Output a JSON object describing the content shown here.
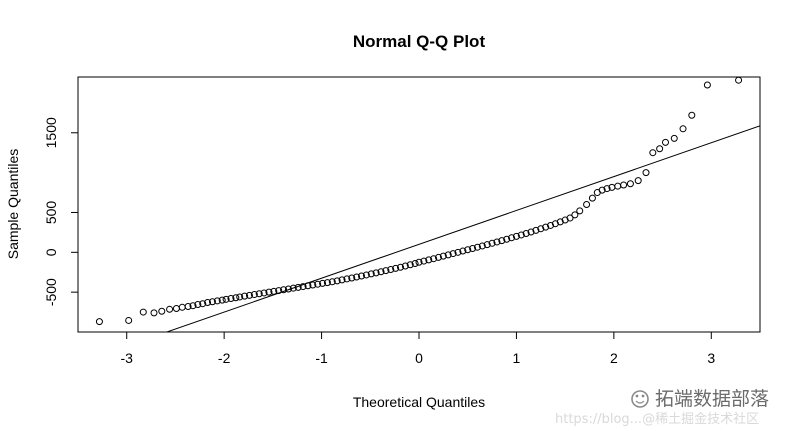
{
  "chart_data": {
    "type": "scatter",
    "subtype": "normal-qq",
    "title": "Normal Q-Q Plot",
    "xlabel": "Theoretical Quantiles",
    "ylabel": "Sample Quantiles",
    "xlim": [
      -3.5,
      3.5
    ],
    "ylim": [
      -1000,
      2200
    ],
    "x_ticks": [
      -3,
      -2,
      -1,
      0,
      1,
      2,
      3
    ],
    "y_ticks": [
      -500,
      0,
      500,
      1500
    ],
    "reference_line": {
      "slope": 425,
      "intercept": 100
    },
    "marker": "open-circle",
    "point_color": "#000000",
    "line_color": "#000000",
    "grid": false,
    "legend": "none",
    "points": [
      [
        -3.28,
        -870
      ],
      [
        -2.98,
        -855
      ],
      [
        -2.83,
        -750
      ],
      [
        -2.72,
        -760
      ],
      [
        -2.64,
        -740
      ],
      [
        -2.56,
        -715
      ],
      [
        -2.49,
        -705
      ],
      [
        -2.43,
        -690
      ],
      [
        -2.37,
        -680
      ],
      [
        -2.32,
        -670
      ],
      [
        -2.27,
        -655
      ],
      [
        -2.22,
        -645
      ],
      [
        -2.17,
        -630
      ],
      [
        -2.12,
        -620
      ],
      [
        -2.07,
        -610
      ],
      [
        -2.02,
        -600
      ],
      [
        -1.98,
        -590
      ],
      [
        -1.93,
        -580
      ],
      [
        -1.88,
        -570
      ],
      [
        -1.84,
        -560
      ],
      [
        -1.79,
        -550
      ],
      [
        -1.74,
        -540
      ],
      [
        -1.69,
        -530
      ],
      [
        -1.64,
        -520
      ],
      [
        -1.59,
        -510
      ],
      [
        -1.54,
        -500
      ],
      [
        -1.49,
        -490
      ],
      [
        -1.44,
        -480
      ],
      [
        -1.39,
        -470
      ],
      [
        -1.34,
        -460
      ],
      [
        -1.29,
        -450
      ],
      [
        -1.24,
        -440
      ],
      [
        -1.19,
        -430
      ],
      [
        -1.14,
        -420
      ],
      [
        -1.09,
        -410
      ],
      [
        -1.04,
        -400
      ],
      [
        -0.99,
        -390
      ],
      [
        -0.94,
        -380
      ],
      [
        -0.89,
        -370
      ],
      [
        -0.84,
        -358
      ],
      [
        -0.79,
        -346
      ],
      [
        -0.74,
        -334
      ],
      [
        -0.69,
        -322
      ],
      [
        -0.64,
        -310
      ],
      [
        -0.59,
        -297
      ],
      [
        -0.54,
        -284
      ],
      [
        -0.49,
        -271
      ],
      [
        -0.44,
        -258
      ],
      [
        -0.39,
        -244
      ],
      [
        -0.34,
        -230
      ],
      [
        -0.29,
        -216
      ],
      [
        -0.24,
        -202
      ],
      [
        -0.19,
        -187
      ],
      [
        -0.14,
        -172
      ],
      [
        -0.09,
        -156
      ],
      [
        -0.04,
        -140
      ],
      [
        0.0,
        -125
      ],
      [
        0.05,
        -110
      ],
      [
        0.1,
        -95
      ],
      [
        0.15,
        -80
      ],
      [
        0.2,
        -64
      ],
      [
        0.25,
        -48
      ],
      [
        0.3,
        -32
      ],
      [
        0.35,
        -16
      ],
      [
        0.4,
        0
      ],
      [
        0.45,
        16
      ],
      [
        0.5,
        32
      ],
      [
        0.55,
        48
      ],
      [
        0.6,
        64
      ],
      [
        0.65,
        80
      ],
      [
        0.7,
        96
      ],
      [
        0.75,
        113
      ],
      [
        0.8,
        130
      ],
      [
        0.85,
        147
      ],
      [
        0.9,
        164
      ],
      [
        0.95,
        182
      ],
      [
        1.0,
        200
      ],
      [
        1.05,
        218
      ],
      [
        1.1,
        236
      ],
      [
        1.15,
        255
      ],
      [
        1.2,
        275
      ],
      [
        1.25,
        295
      ],
      [
        1.3,
        316
      ],
      [
        1.35,
        337
      ],
      [
        1.4,
        359
      ],
      [
        1.45,
        382
      ],
      [
        1.5,
        405
      ],
      [
        1.55,
        430
      ],
      [
        1.6,
        470
      ],
      [
        1.65,
        520
      ],
      [
        1.72,
        600
      ],
      [
        1.78,
        680
      ],
      [
        1.83,
        750
      ],
      [
        1.88,
        780
      ],
      [
        1.93,
        800
      ],
      [
        1.98,
        815
      ],
      [
        2.04,
        830
      ],
      [
        2.1,
        845
      ],
      [
        2.17,
        860
      ],
      [
        2.25,
        900
      ],
      [
        2.33,
        1000
      ],
      [
        2.4,
        1250
      ],
      [
        2.47,
        1300
      ],
      [
        2.53,
        1380
      ],
      [
        2.62,
        1430
      ],
      [
        2.71,
        1550
      ],
      [
        2.8,
        1720
      ],
      [
        2.96,
        2100
      ],
      [
        3.28,
        2160
      ]
    ]
  },
  "watermark": {
    "primary": "拓端数据部落",
    "faint": "https://blog...@稀土掘金技术社区"
  }
}
